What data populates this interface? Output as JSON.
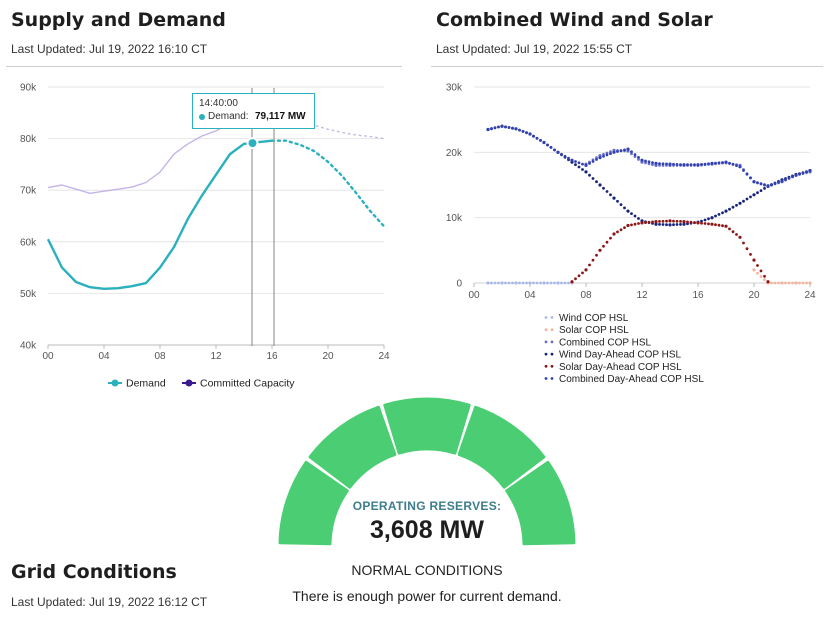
{
  "supply_demand": {
    "title": "Supply and Demand",
    "updated": "Last Updated: Jul 19, 2022 16:10 CT",
    "tooltip_time": "14:40:00",
    "tooltip_label": "Demand:",
    "tooltip_value": "79,117 MW"
  },
  "wind_solar": {
    "title": "Combined Wind and Solar",
    "updated": "Last Updated: Jul 19, 2022 15:55 CT"
  },
  "grid": {
    "title": "Grid Conditions",
    "updated": "Last Updated: Jul 19, 2022 16:12 CT",
    "reserves_label": "OPERATING RESERVES:",
    "reserves_value": "3,608 MW",
    "status": "NORMAL CONDITIONS",
    "description": "There is enough power for current demand.",
    "gauge_segments": 5,
    "gauge_color": "#4bce73"
  },
  "chart_data": [
    {
      "type": "line",
      "x_ticks": [
        "00",
        "04",
        "08",
        "12",
        "16",
        "20",
        "24"
      ],
      "y_ticks": [
        "40k",
        "50k",
        "60k",
        "70k",
        "80k",
        "90k"
      ],
      "xlim": [
        0,
        24
      ],
      "ylim": [
        40000,
        90000
      ],
      "grid": true,
      "legend_position": "bottom",
      "series": [
        {
          "name": "Demand",
          "color": "#2bb0be",
          "style": "solid",
          "x": [
            0,
            1,
            2,
            3,
            4,
            5,
            6,
            7,
            8,
            9,
            10,
            11,
            12,
            13,
            14,
            14.67,
            15,
            16
          ],
          "y": [
            60500,
            55000,
            52200,
            51200,
            50900,
            51000,
            51400,
            52000,
            55000,
            59000,
            64500,
            69000,
            73000,
            77000,
            79000,
            79117,
            79300,
            79600
          ]
        },
        {
          "name": "Demand",
          "color": "#2bb0be",
          "style": "dotted",
          "x": [
            16,
            17,
            18,
            19,
            20,
            21,
            22,
            23,
            24
          ],
          "y": [
            79600,
            79600,
            78800,
            77600,
            75500,
            72800,
            69500,
            66000,
            63000
          ]
        },
        {
          "name": "Committed Capacity",
          "color": "#c5b4e6",
          "style": "solid",
          "x": [
            0,
            1,
            2,
            3,
            4,
            5,
            6,
            7,
            8,
            9,
            10,
            11,
            12,
            13,
            14,
            15,
            16
          ],
          "y": [
            70500,
            71000,
            70200,
            69400,
            69800,
            70200,
            70600,
            71500,
            73500,
            77000,
            79000,
            80500,
            81500,
            83000,
            84500,
            86000,
            86500
          ]
        },
        {
          "name": "Committed Capacity",
          "color": "#c5b4e6",
          "style": "dotted",
          "x": [
            16,
            17,
            18,
            19,
            20,
            21,
            22,
            23,
            24
          ],
          "y": [
            86500,
            85800,
            84000,
            82600,
            81800,
            81200,
            80700,
            80400,
            80000
          ]
        }
      ],
      "legend": [
        {
          "label": "Demand",
          "color": "#2bb0be"
        },
        {
          "label": "Committed Capacity",
          "color": "#3a1a8c"
        }
      ]
    },
    {
      "type": "scatter",
      "x_ticks": [
        "00",
        "04",
        "08",
        "12",
        "16",
        "20",
        "24"
      ],
      "y_ticks": [
        "0",
        "10k",
        "20k",
        "30k"
      ],
      "xlim": [
        0,
        24
      ],
      "ylim": [
        0,
        30000
      ],
      "grid": true,
      "legend_position": "bottom",
      "series": [
        {
          "name": "Wind COP HSL",
          "color": "#a9b8ea",
          "x": [
            1,
            2,
            3,
            4,
            5,
            6,
            7
          ],
          "y": [
            0,
            0,
            0,
            0,
            0,
            0,
            0
          ]
        },
        {
          "name": "Solar COP HSL",
          "color": "#f2b59e",
          "x": [
            20,
            21,
            22,
            23,
            24
          ],
          "y": [
            2000,
            0,
            0,
            0,
            0
          ]
        },
        {
          "name": "Combined COP HSL",
          "color": "#6870c8",
          "x": [
            8,
            9,
            10,
            11,
            12,
            13,
            14,
            15,
            16,
            17,
            18,
            19,
            20,
            21,
            22,
            23,
            24
          ],
          "y": [
            18200,
            19500,
            20300,
            20200,
            18500,
            18000,
            18000,
            18000,
            18000,
            18200,
            18400,
            18000,
            15500,
            14800,
            15500,
            16500,
            17000
          ]
        },
        {
          "name": "Wind Day-Ahead COP HSL",
          "color": "#16247a",
          "x": [
            1,
            2,
            3,
            4,
            5,
            6,
            7,
            8,
            9,
            10,
            11,
            12,
            13,
            14,
            15,
            16,
            17,
            18,
            19,
            20,
            21,
            22,
            23,
            24
          ],
          "y": [
            23500,
            24000,
            23600,
            22800,
            21500,
            20000,
            18500,
            17000,
            15000,
            13000,
            11000,
            9500,
            9000,
            8900,
            9000,
            9300,
            10000,
            11000,
            12200,
            13500,
            14800,
            15800,
            16600,
            17200
          ]
        },
        {
          "name": "Solar Day-Ahead COP HSL",
          "color": "#8c1616",
          "x": [
            7,
            8,
            9,
            10,
            11,
            12,
            13,
            14,
            15,
            16,
            17,
            18,
            19,
            20,
            21
          ],
          "y": [
            200,
            2000,
            5000,
            7500,
            8800,
            9200,
            9400,
            9500,
            9400,
            9200,
            9000,
            8700,
            7000,
            3500,
            200
          ]
        },
        {
          "name": "Combined Day-Ahead COP HSL",
          "color": "#3340b0",
          "x": [
            1,
            2,
            3,
            4,
            5,
            6,
            7,
            8,
            9,
            10,
            11,
            12,
            13,
            14,
            15,
            16,
            17,
            18,
            19,
            20,
            21,
            22,
            23,
            24
          ],
          "y": [
            23500,
            24000,
            23600,
            22800,
            21500,
            20000,
            18800,
            18000,
            19200,
            20000,
            20500,
            18800,
            18300,
            18200,
            18100,
            18100,
            18300,
            18500,
            17800,
            15500,
            14900,
            15600,
            16500,
            17200
          ]
        }
      ]
    }
  ]
}
